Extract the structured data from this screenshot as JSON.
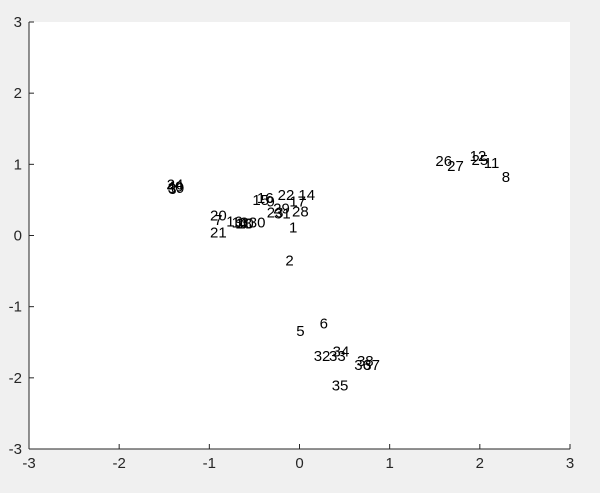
{
  "chart_data": {
    "type": "scatter",
    "title": "",
    "xlabel": "",
    "ylabel": "",
    "xlim": [
      -3,
      3
    ],
    "ylim": [
      -3,
      3
    ],
    "xticks": [
      "-3",
      "-2",
      "-1",
      "0",
      "1",
      "2",
      "3"
    ],
    "yticks": [
      "-3",
      "-2",
      "-1",
      "0",
      "1",
      "2",
      "3"
    ],
    "grid": false,
    "marker": "text labels",
    "points": [
      {
        "label": "1",
        "x": -0.07,
        "y": 0.11
      },
      {
        "label": "2",
        "x": -0.11,
        "y": -0.35
      },
      {
        "label": "3",
        "x": -1.41,
        "y": 0.65
      },
      {
        "label": "4",
        "x": -0.63,
        "y": 0.17
      },
      {
        "label": "5",
        "x": 0.01,
        "y": -1.34
      },
      {
        "label": "6",
        "x": 0.27,
        "y": -1.24
      },
      {
        "label": "7",
        "x": -0.9,
        "y": 0.22
      },
      {
        "label": "8",
        "x": 2.29,
        "y": 0.82
      },
      {
        "label": "9",
        "x": -0.32,
        "y": 0.48
      },
      {
        "label": "10",
        "x": -0.6,
        "y": 0.17
      },
      {
        "label": "11",
        "x": 2.13,
        "y": 1.02
      },
      {
        "label": "12",
        "x": 1.98,
        "y": 1.12
      },
      {
        "label": "13",
        "x": -0.66,
        "y": 0.18
      },
      {
        "label": "14",
        "x": 0.08,
        "y": 0.57
      },
      {
        "label": "15",
        "x": -0.43,
        "y": 0.5
      },
      {
        "label": "16",
        "x": -0.38,
        "y": 0.53
      },
      {
        "label": "17",
        "x": -0.02,
        "y": 0.48
      },
      {
        "label": "18",
        "x": -0.62,
        "y": 0.17
      },
      {
        "label": "19",
        "x": -0.72,
        "y": 0.2
      },
      {
        "label": "20",
        "x": -0.9,
        "y": 0.28
      },
      {
        "label": "21",
        "x": -0.9,
        "y": 0.04
      },
      {
        "label": "22",
        "x": -0.15,
        "y": 0.57
      },
      {
        "label": "23",
        "x": -0.27,
        "y": 0.32
      },
      {
        "label": "24",
        "x": -1.38,
        "y": 0.72
      },
      {
        "label": "25",
        "x": 2.0,
        "y": 1.06
      },
      {
        "label": "26",
        "x": 1.6,
        "y": 1.05
      },
      {
        "label": "27",
        "x": 1.73,
        "y": 0.98
      },
      {
        "label": "28",
        "x": 0.01,
        "y": 0.34
      },
      {
        "label": "29",
        "x": -0.2,
        "y": 0.38
      },
      {
        "label": "30",
        "x": -0.47,
        "y": 0.18
      },
      {
        "label": "31",
        "x": -0.19,
        "y": 0.31
      },
      {
        "label": "32",
        "x": 0.25,
        "y": -1.69
      },
      {
        "label": "33",
        "x": 0.42,
        "y": -1.69
      },
      {
        "label": "34",
        "x": 0.46,
        "y": -1.63
      },
      {
        "label": "35",
        "x": 0.45,
        "y": -2.11
      },
      {
        "label": "36",
        "x": 0.7,
        "y": -1.82
      },
      {
        "label": "37",
        "x": 0.8,
        "y": -1.82
      },
      {
        "label": "38",
        "x": 0.73,
        "y": -1.76
      },
      {
        "label": "39",
        "x": -1.37,
        "y": 0.67
      },
      {
        "label": "40",
        "x": -1.38,
        "y": 0.69
      }
    ]
  }
}
